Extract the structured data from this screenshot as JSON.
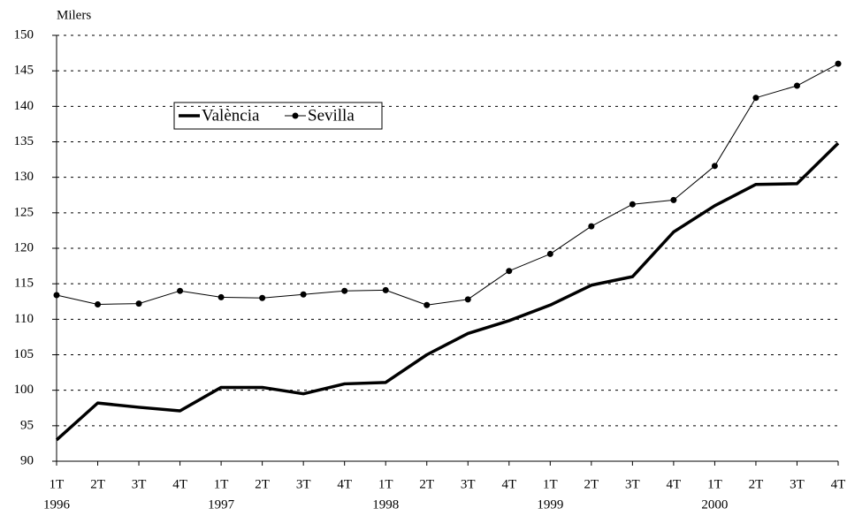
{
  "chart_data": {
    "type": "line",
    "y_label": "Milers",
    "categories": [
      "1T",
      "2T",
      "3T",
      "4T",
      "1T",
      "2T",
      "3T",
      "4T",
      "1T",
      "2T",
      "3T",
      "4T",
      "1T",
      "2T",
      "3T",
      "4T",
      "1T",
      "2T",
      "3T",
      "4T"
    ],
    "year_labels": [
      "1996",
      "1997",
      "1998",
      "1999",
      "2000"
    ],
    "series": [
      {
        "name": "València",
        "color": "#000000",
        "width": 3.5,
        "markers": false,
        "values": [
          93,
          98.2,
          97.6,
          97.1,
          100.4,
          100.4,
          99.5,
          100.9,
          101.1,
          105,
          108,
          109.8,
          112,
          114.8,
          116,
          122.3,
          126,
          129,
          129.1,
          134.8
        ]
      },
      {
        "name": "Sevilla",
        "color": "#000000",
        "width": 1,
        "markers": true,
        "values": [
          113.4,
          112.1,
          112.2,
          114,
          113.1,
          113,
          113.5,
          114,
          114.1,
          112,
          112.8,
          116.8,
          119.2,
          123.1,
          126.2,
          126.8,
          131.6,
          141.2,
          142.9,
          146
        ]
      }
    ],
    "ylim": [
      90,
      150
    ],
    "yticks": [
      90,
      95,
      100,
      105,
      110,
      115,
      120,
      125,
      130,
      135,
      140,
      145,
      150
    ],
    "grid": true
  }
}
